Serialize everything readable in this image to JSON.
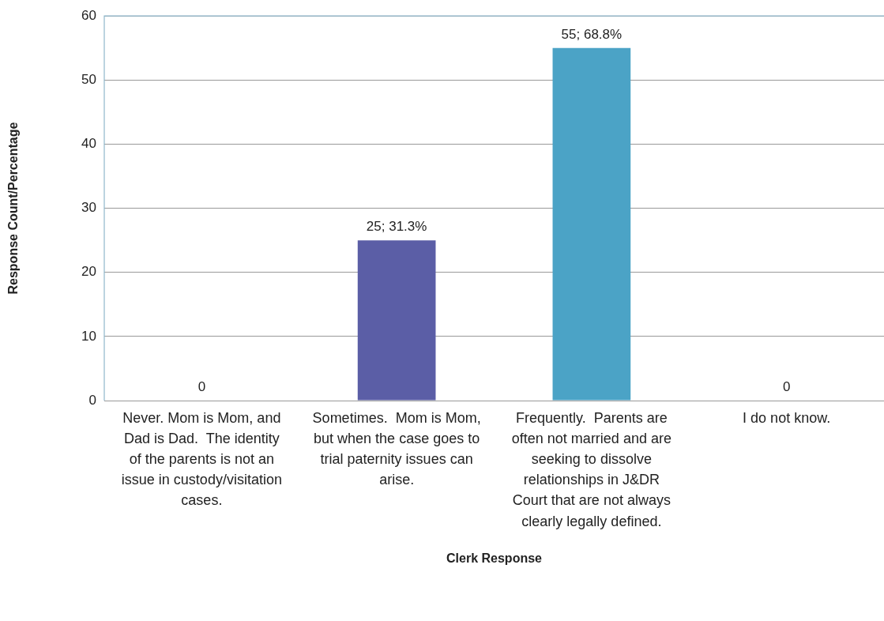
{
  "chart_data": {
    "type": "bar",
    "xlabel": "Clerk Response",
    "ylabel": "Response Count/Percentage",
    "categories": [
      "Never. Mom is Mom, and Dad is Dad.  The identity of the parents is not an issue in custody/visitation cases.",
      "Sometimes.  Mom is Mom, but when the case goes to trial paternity issues can arise.",
      "Frequently.  Parents are often not married and are seeking to dissolve relationships in J&DR Court that are not always clearly legally defined.",
      "I do not know."
    ],
    "values": [
      0,
      25,
      55,
      0
    ],
    "colors": [
      "#5b5ea6",
      "#5b5ea6",
      "#4ba3c6",
      "#4ba3c6"
    ],
    "value_labels": [
      "0",
      "25; 31.3%",
      "55; 68.8%",
      "0"
    ],
    "ylim": [
      0,
      60
    ],
    "yticks": [
      0,
      10,
      20,
      30,
      40,
      50,
      60
    ],
    "grid": "y",
    "legend": false
  }
}
